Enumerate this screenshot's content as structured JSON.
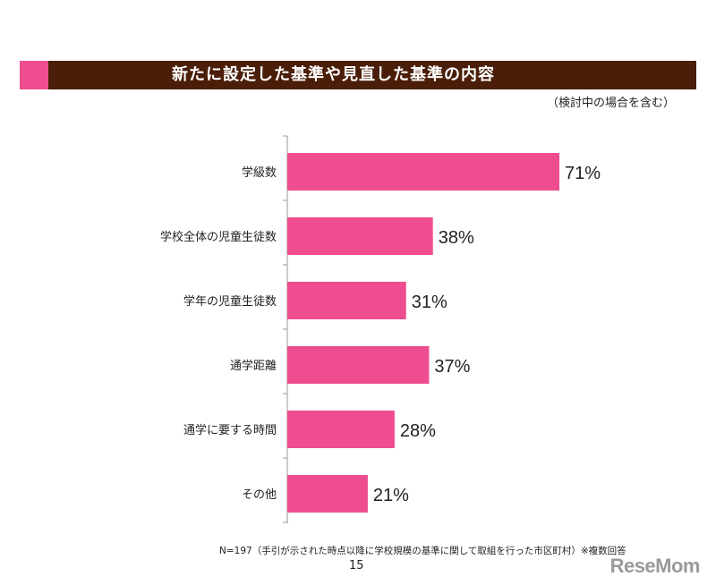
{
  "header": {
    "title": "新たに設定した基準や見直した基準の内容",
    "subtitle": "（検討中の場合を含む）",
    "bar_color": "#4a1e08",
    "accent_color": "#ee4d8f"
  },
  "chart_data": {
    "type": "bar",
    "orientation": "horizontal",
    "categories": [
      "学級数",
      "学校全体の児童生徒数",
      "学年の児童生徒数",
      "通学距離",
      "通学に要する時間",
      "その他"
    ],
    "values": [
      71,
      38,
      31,
      37,
      28,
      21
    ],
    "value_labels": [
      "71%",
      "38%",
      "31%",
      "37%",
      "28%",
      "21%"
    ],
    "xlim": [
      0,
      100
    ],
    "bar_color": "#ee4d8f",
    "grid": false
  },
  "footer": {
    "note": "N=197（手引が示された時点以降に学校規模の基準に関して取組を行った市区町村）※複数回答",
    "page_number": "15",
    "watermark": "ReseMom"
  }
}
